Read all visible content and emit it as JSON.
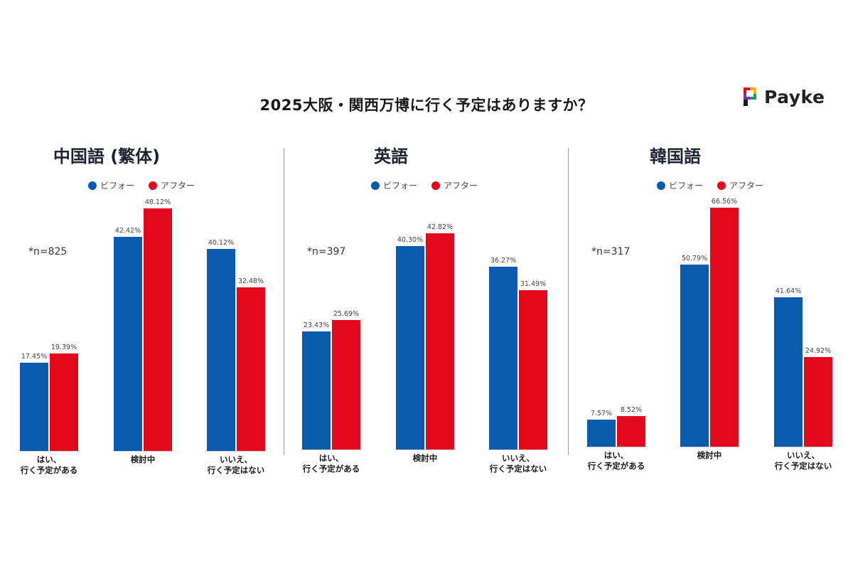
{
  "title": "2025大阪・関西万博に行く予定はありますか？",
  "brand": {
    "name": "Payke"
  },
  "colors": {
    "before": "#0a5bb0",
    "after": "#e3071c",
    "divider": "#999999"
  },
  "chart_data": [
    {
      "type": "bar",
      "title": "中国語 (繁体)",
      "n_label": "*n=825",
      "categories": [
        [
          "はい、",
          "行く予定がある"
        ],
        [
          "検討中"
        ],
        [
          "いいえ、",
          "行く予定はない"
        ]
      ],
      "series": [
        {
          "name": "ビフォー",
          "values": [
            17.45,
            42.42,
            40.12
          ],
          "labels": [
            "17.45%",
            "42.42%",
            "40.12%"
          ]
        },
        {
          "name": "アフター",
          "values": [
            19.39,
            48.12,
            32.48
          ],
          "labels": [
            "19.39%",
            "48.12%",
            "32.48%"
          ]
        }
      ],
      "ylim": [
        0,
        48.12
      ]
    },
    {
      "type": "bar",
      "title": "英語",
      "n_label": "*n=397",
      "categories": [
        [
          "はい、",
          "行く予定がある"
        ],
        [
          "検討中"
        ],
        [
          "いいえ、",
          "行く予定はない"
        ]
      ],
      "series": [
        {
          "name": "ビフォー",
          "values": [
            23.43,
            40.3,
            36.27
          ],
          "labels": [
            "23.43%",
            "40.30%",
            "36.27%"
          ]
        },
        {
          "name": "アフター",
          "values": [
            25.69,
            42.82,
            31.49
          ],
          "labels": [
            "25.69%",
            "42.82%",
            "31.49%"
          ]
        }
      ],
      "ylim": [
        0,
        42.82
      ]
    },
    {
      "type": "bar",
      "title": "韓国語",
      "n_label": "*n=317",
      "categories": [
        [
          "はい、",
          "行く予定がある"
        ],
        [
          "検討中"
        ],
        [
          "いいえ、",
          "行く予定はない"
        ]
      ],
      "series": [
        {
          "name": "ビフォー",
          "values": [
            7.57,
            50.79,
            41.64
          ],
          "labels": [
            "7.57%",
            "50.79%",
            "41.64%"
          ]
        },
        {
          "name": "アフター",
          "values": [
            8.52,
            66.56,
            24.92
          ],
          "labels": [
            "8.52%",
            "66.56%",
            "24.92%"
          ]
        }
      ],
      "ylim": [
        0,
        66.56
      ]
    }
  ]
}
